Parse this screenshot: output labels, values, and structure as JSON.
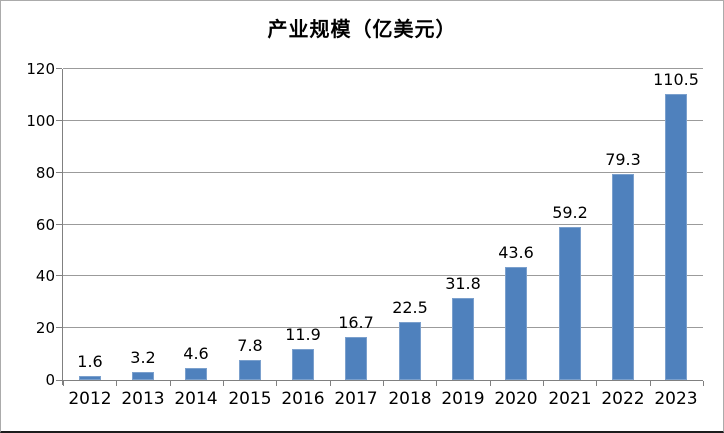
{
  "chart_data": {
    "type": "bar",
    "title": "产业规模（亿美元）",
    "categories": [
      "2012",
      "2013",
      "2014",
      "2015",
      "2016",
      "2017",
      "2018",
      "2019",
      "2020",
      "2021",
      "2022",
      "2023"
    ],
    "values": [
      1.6,
      3.2,
      4.6,
      7.8,
      11.9,
      16.7,
      22.5,
      31.8,
      43.6,
      59.2,
      79.3,
      110.5
    ],
    "value_labels": [
      "1.6",
      "3.2",
      "4.6",
      "7.8",
      "11.9",
      "16.7",
      "22.5",
      "31.8",
      "43.6",
      "59.2",
      "79.3",
      "110.5"
    ],
    "xlabel": "",
    "ylabel": "",
    "ylim": [
      0,
      120
    ],
    "yticks": [
      0,
      20,
      40,
      60,
      80,
      100,
      120
    ],
    "grid": true,
    "legend": "none",
    "bar_color": "#4f81bd",
    "gridline_color": "#9b9b9b",
    "axis_color": "#808080"
  }
}
